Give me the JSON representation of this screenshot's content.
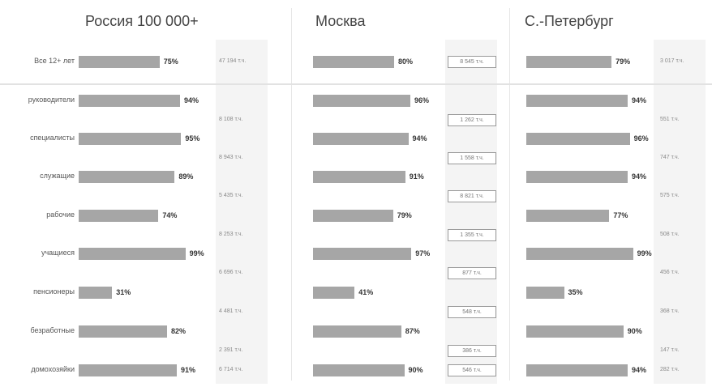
{
  "chart_data": {
    "type": "bar",
    "categories": [
      "Все 12+ лет",
      "руководители",
      "специалисты",
      "служащие",
      "рабочие",
      "учащиеся",
      "пенсионеры",
      "безработные",
      "домохозяйки"
    ],
    "panels": [
      {
        "title": "Россия 100 000+",
        "values": [
          75,
          94,
          95,
          89,
          74,
          99,
          31,
          82,
          91
        ],
        "counts": [
          "47 194 т.ч.",
          "",
          "8 108 т.ч.",
          "8 943 т.ч.",
          "5 435 т.ч.",
          "8 253 т.ч.",
          "6 696 т.ч.",
          "4 481 т.ч.",
          "2 391 т.ч.",
          "6 714 т.ч."
        ]
      },
      {
        "title": "Москва",
        "values": [
          80,
          96,
          94,
          91,
          79,
          97,
          41,
          87,
          90
        ],
        "counts": [
          "8 545 т.ч.",
          "",
          "1 262 т.ч.",
          "1 558 т.ч.",
          "8 821 т.ч.",
          "1 355 т.ч.",
          "877 т.ч.",
          "548 т.ч.",
          "386 т.ч.",
          "546 т.ч."
        ]
      },
      {
        "title": "С.-Петербург",
        "values": [
          79,
          94,
          96,
          94,
          77,
          99,
          35,
          90,
          94
        ],
        "counts": [
          "3 017 т.ч.",
          "",
          "551 т.ч.",
          "747 т.ч.",
          "575 т.ч.",
          "508 т.ч.",
          "456 т.ч.",
          "368 т.ч.",
          "147 т.ч.",
          "282 т.ч."
        ]
      }
    ],
    "unit": "%",
    "legend": "none",
    "grid": false
  },
  "colors": {
    "bar": "#a6a6a6",
    "strip": "#f4f4f4",
    "separator": "#e2e2e2"
  }
}
